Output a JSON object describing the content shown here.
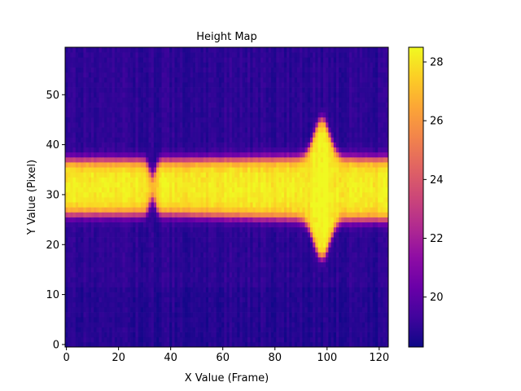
{
  "chart_data": {
    "type": "heatmap",
    "title": "Height Map",
    "xlabel": "X Value (Frame)",
    "ylabel": "Y Value (Pixel)",
    "xlim": [
      -0.5,
      123.5
    ],
    "ylim": [
      -0.5,
      59.5
    ],
    "x_ticks": [
      0,
      20,
      40,
      60,
      80,
      100,
      120
    ],
    "y_ticks": [
      0,
      10,
      20,
      30,
      40,
      50
    ],
    "colormap": "plasma",
    "colorbar": {
      "vmin": 18.3,
      "vmax": 28.5,
      "ticks": [
        20,
        22,
        24,
        26,
        28
      ]
    },
    "shape": [
      60,
      124
    ],
    "description_model": {
      "background_level": 18.9,
      "band_peak_level": 28.2,
      "band_center_y": 31.5,
      "band_half_width_left": 5.5,
      "band_half_width_right": 6.2,
      "pinch_x": 33,
      "bulge_x": 98,
      "bulge_half_width": 15.5
    }
  }
}
